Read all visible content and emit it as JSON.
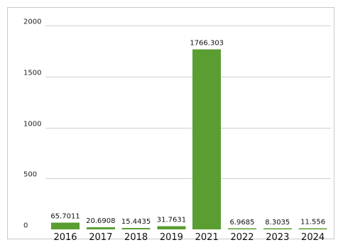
{
  "chart_data": {
    "type": "bar",
    "categories": [
      "2016",
      "2017",
      "2018",
      "2019",
      "2021",
      "2022",
      "2023",
      "2024"
    ],
    "values": [
      65.7011,
      20.6908,
      15.4435,
      31.7631,
      1766.303,
      6.9685,
      8.3035,
      11.556
    ],
    "data_labels": [
      "65.7011",
      "20.6908",
      "15.4435",
      "31.7631",
      "1766.303",
      "6.9685",
      "8.3035",
      "11.556"
    ],
    "ylim": [
      0,
      2000
    ],
    "yticks": [
      0,
      500,
      1000,
      1500,
      2000
    ],
    "grid": true,
    "bar_color": "#5a9e32",
    "title": "",
    "xlabel": "",
    "ylabel": ""
  }
}
